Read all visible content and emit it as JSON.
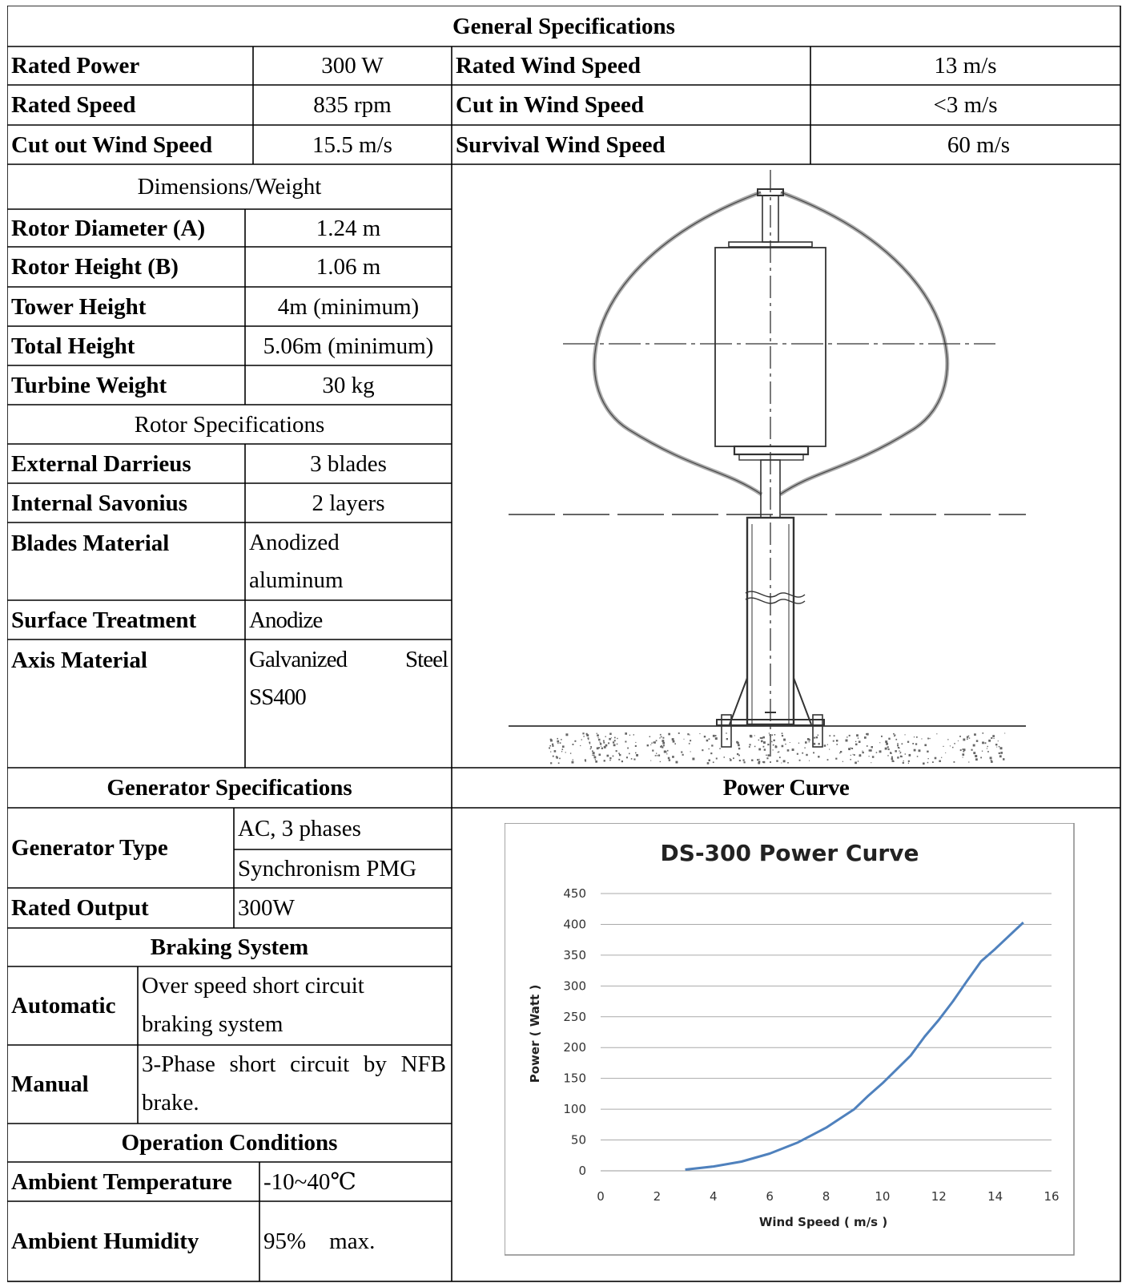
{
  "general": {
    "title": "General Specifications",
    "rows": [
      [
        "Rated Power",
        "300 W",
        "Rated Wind Speed",
        "13 m/s"
      ],
      [
        "Rated Speed",
        "835 rpm",
        "Cut in Wind Speed",
        "<3 m/s"
      ],
      [
        "Cut out Wind Speed",
        "15.5 m/s",
        "Survival Wind Speed",
        "60 m/s"
      ]
    ]
  },
  "dimensions": {
    "title": "Dimensions/Weight",
    "rows": [
      [
        "Rotor Diameter (A)",
        "1.24 m"
      ],
      [
        "Rotor Height (B)",
        "1.06 m"
      ],
      [
        "Tower Height",
        "4m (minimum)"
      ],
      [
        "Total Height",
        "5.06m (minimum)"
      ],
      [
        "Turbine Weight",
        "30 kg"
      ]
    ]
  },
  "rotor": {
    "title": "Rotor Specifications",
    "rows": [
      [
        "External Darrieus",
        "3 blades"
      ],
      [
        "Internal Savonius",
        "2 layers"
      ],
      [
        "Blades Material",
        "Anodized aluminum"
      ],
      [
        "Surface Treatment",
        "Anodize"
      ],
      [
        "Axis Material",
        "Galvanized Steel SS400"
      ]
    ]
  },
  "generator": {
    "title": "Generator Specifications",
    "type_label": "Generator Type",
    "type_values": [
      "AC, 3 phases",
      "Synchronism PMG"
    ],
    "output_label": "Rated Output",
    "output_value": "300W"
  },
  "braking": {
    "title": "Braking System",
    "automatic_label": "Automatic",
    "automatic_value": "Over speed short circuit braking system",
    "manual_label": "Manual",
    "manual_value": "3-Phase short circuit by NFB brake."
  },
  "operation": {
    "title": "Operation Conditions",
    "temp_label": "Ambient Temperature",
    "temp_value": "-10~40℃",
    "humidity_label": "Ambient Humidity",
    "humidity_value": "95%    max."
  },
  "power_curve_header": "Power Curve",
  "chart_data": {
    "type": "line",
    "title": "DS-300 Power Curve",
    "xlabel": "Wind Speed ( m/s )",
    "ylabel": "Power ( Watt )",
    "xlim": [
      0,
      16
    ],
    "ylim": [
      0,
      450
    ],
    "xticks": [
      0,
      2,
      4,
      6,
      8,
      10,
      12,
      14,
      16
    ],
    "yticks": [
      0,
      50,
      100,
      150,
      200,
      250,
      300,
      350,
      400,
      450
    ],
    "grid": true,
    "line_color": "#4f81bd",
    "series": [
      {
        "x": [
          3,
          4,
          5,
          6,
          7,
          8,
          9,
          9.5,
          10,
          11,
          11.5,
          12,
          12.5,
          13,
          13.5,
          14,
          15
        ],
        "y": [
          2,
          7,
          15,
          28,
          46,
          70,
          100,
          122,
          142,
          187,
          218,
          245,
          275,
          308,
          340,
          360,
          403
        ]
      }
    ]
  }
}
